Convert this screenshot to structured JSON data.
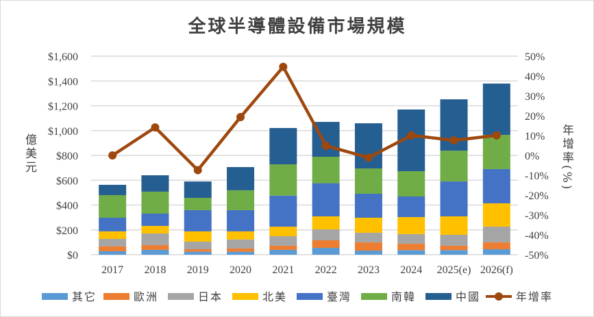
{
  "chart_data": {
    "type": "bar",
    "stacked": true,
    "title": "全球半導體設備市場規模",
    "ylabel": "億美元",
    "y2label": "年增率(%)",
    "ylim": [
      0,
      1600
    ],
    "y2lim": [
      -50,
      50
    ],
    "yticks": [
      "$0",
      "$200",
      "$400",
      "$600",
      "$800",
      "$1,000",
      "$1,200",
      "$1,400",
      "$1,600"
    ],
    "y2ticks": [
      "-50%",
      "-40%",
      "-30%",
      "-20%",
      "-10%",
      "0%",
      "10%",
      "20%",
      "30%",
      "40%",
      "50%"
    ],
    "grid": true,
    "legend": "bottom",
    "categories": [
      "2017",
      "2018",
      "2019",
      "2020",
      "2021",
      "2022",
      "2023",
      "2024",
      "2025(e)",
      "2026(f)"
    ],
    "series": [
      {
        "name": "其它",
        "color": "#5b9bd5",
        "values": [
          28,
          39,
          24,
          24,
          39,
          55,
          33,
          37,
          37,
          44
        ]
      },
      {
        "name": "歐洲",
        "color": "#ed7d31",
        "values": [
          40,
          38,
          20,
          26,
          33,
          61,
          66,
          51,
          35,
          55
        ]
      },
      {
        "name": "日本",
        "color": "#a5a5a5",
        "values": [
          59,
          94,
          61,
          73,
          77,
          88,
          78,
          78,
          88,
          127
        ]
      },
      {
        "name": "北美",
        "color": "#ffc000",
        "values": [
          61,
          61,
          83,
          65,
          77,
          105,
          121,
          137,
          149,
          188
        ]
      },
      {
        "name": "臺灣",
        "color": "#4472c4",
        "values": [
          110,
          99,
          171,
          171,
          250,
          267,
          193,
          166,
          281,
          276
        ]
      },
      {
        "name": "南韓",
        "color": "#70ad47",
        "values": [
          182,
          177,
          99,
          160,
          252,
          213,
          204,
          204,
          248,
          275
        ]
      },
      {
        "name": "中國",
        "color": "#255e91",
        "values": [
          83,
          132,
          132,
          187,
          293,
          281,
          364,
          497,
          414,
          414
        ]
      }
    ],
    "line": {
      "name": "年增率",
      "color": "#9e480e",
      "axis": "right",
      "values": [
        0,
        14.1,
        -7.4,
        19.3,
        44.6,
        4.9,
        -1.1,
        10.1,
        7.6,
        10.1
      ]
    }
  }
}
